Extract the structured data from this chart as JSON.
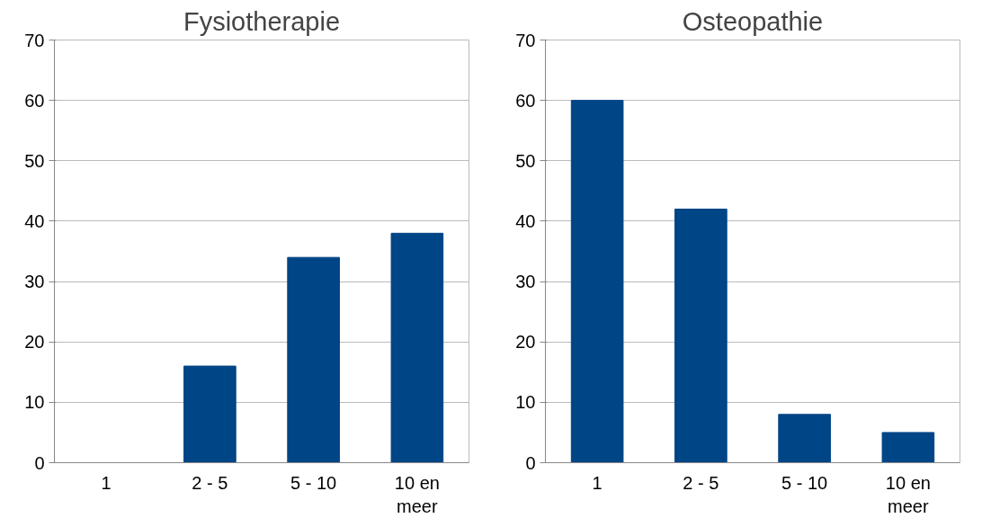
{
  "chart_data": [
    {
      "type": "bar",
      "title": "Fysiotherapie",
      "categories": [
        "1",
        "2 - 5",
        "5 - 10",
        "10 en meer"
      ],
      "values": [
        0,
        16,
        34,
        38
      ],
      "color": "#004586",
      "ylim": [
        0,
        70
      ],
      "yticks": [
        0,
        10,
        20,
        30,
        40,
        50,
        60,
        70
      ],
      "grid": "y"
    },
    {
      "type": "bar",
      "title": "Osteopathie",
      "categories": [
        "1",
        "2 - 5",
        "5 - 10",
        "10 en meer"
      ],
      "values": [
        60,
        42,
        8,
        5
      ],
      "color": "#004586",
      "ylim": [
        0,
        70
      ],
      "yticks": [
        0,
        10,
        20,
        30,
        40,
        50,
        60,
        70
      ],
      "grid": "y"
    }
  ]
}
